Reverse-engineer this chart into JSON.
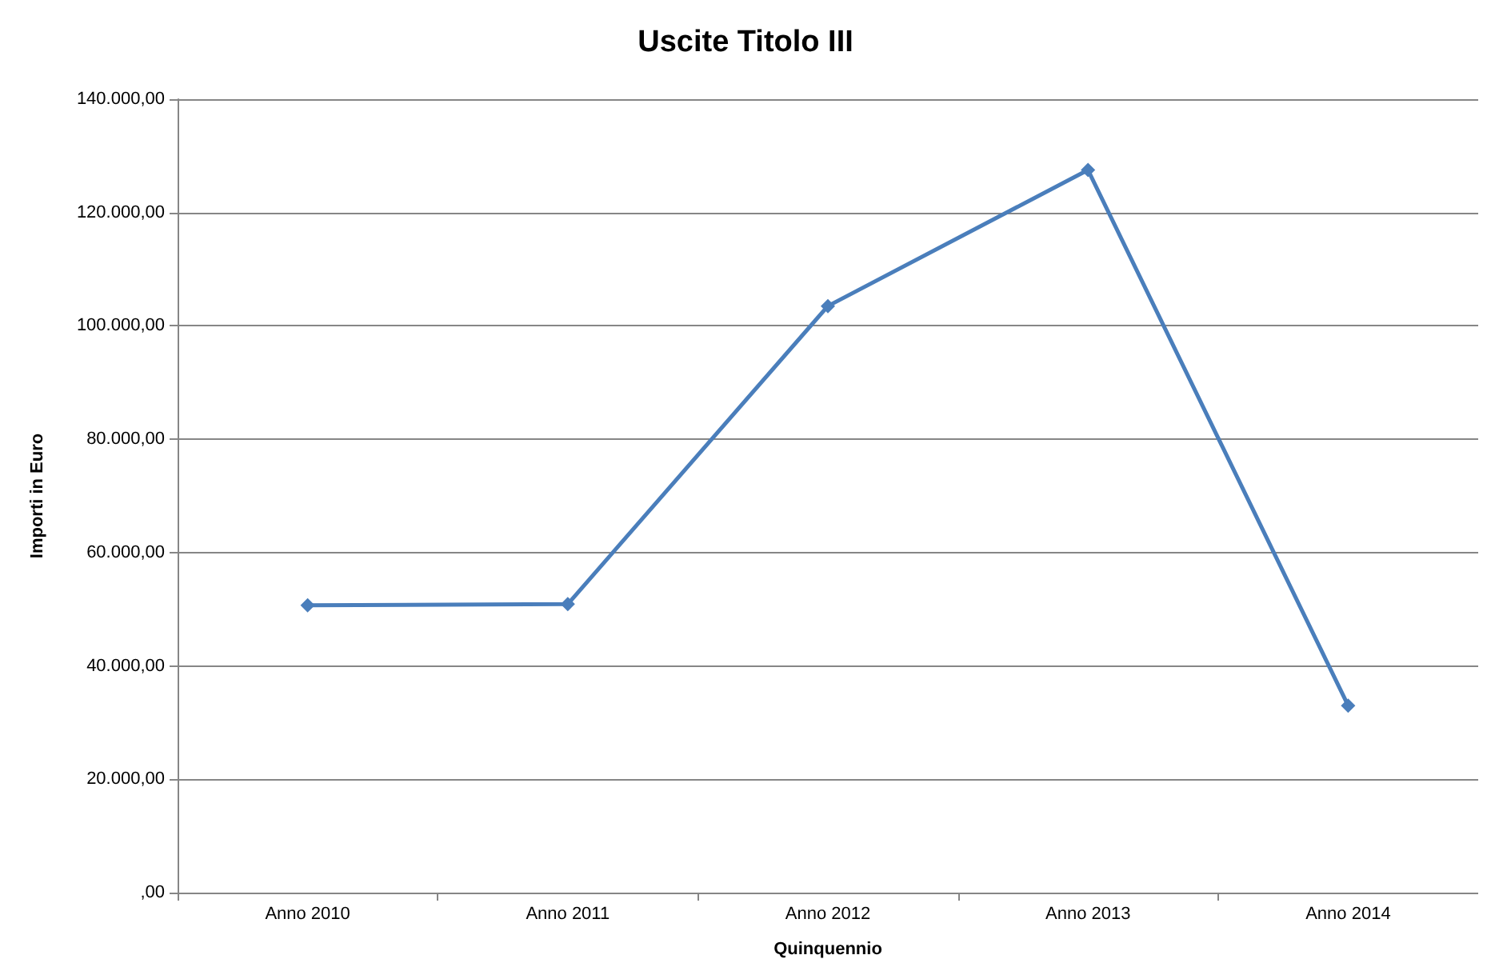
{
  "chart_data": {
    "type": "line",
    "title": "Uscite Titolo III",
    "xlabel": "Quinquennio",
    "ylabel": "Importi in Euro",
    "categories": [
      "Anno 2010",
      "Anno 2011",
      "Anno 2012",
      "Anno 2013",
      "Anno 2014"
    ],
    "series": [
      {
        "color": "#4a7ebb",
        "values": [
          50700,
          50900,
          103500,
          127500,
          33000
        ]
      }
    ],
    "ylim": [
      0,
      140000
    ],
    "yticks": [
      {
        "value": 0,
        "label": ",00"
      },
      {
        "value": 20000,
        "label": "20.000,00"
      },
      {
        "value": 40000,
        "label": "40.000,00"
      },
      {
        "value": 60000,
        "label": "60.000,00"
      },
      {
        "value": 80000,
        "label": "80.000,00"
      },
      {
        "value": 100000,
        "label": "100.000,00"
      },
      {
        "value": 120000,
        "label": "120.000,00"
      },
      {
        "value": 140000,
        "label": "140.000,00"
      }
    ],
    "grid": "y",
    "marker": "diamond",
    "line_style": "solid"
  }
}
